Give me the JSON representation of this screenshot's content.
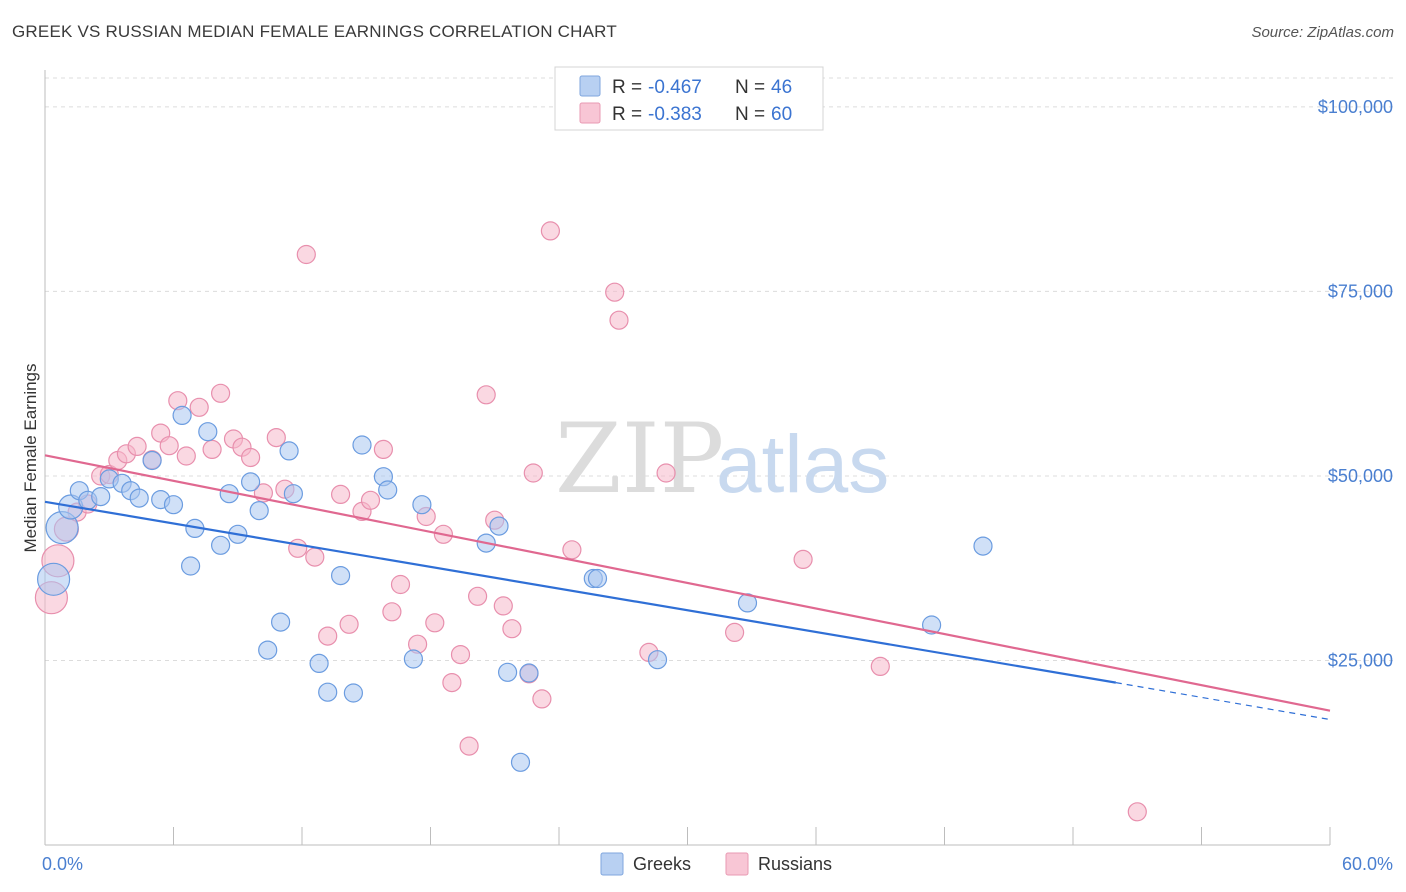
{
  "header": {
    "title": "GREEK VS RUSSIAN MEDIAN FEMALE EARNINGS CORRELATION CHART",
    "source": "Source: ZipAtlas.com"
  },
  "watermark": {
    "zip": "ZIP",
    "atlas": "atlas"
  },
  "legend": {
    "rows": [
      {
        "r_label": "R =",
        "r_value": "-0.467",
        "n_label": "N =",
        "n_value": "46"
      },
      {
        "r_label": "R =",
        "r_value": "-0.383",
        "n_label": "N =",
        "n_value": "60"
      }
    ]
  },
  "chart_data": {
    "type": "scatter",
    "title": "GREEK VS RUSSIAN MEDIAN FEMALE EARNINGS CORRELATION CHART",
    "xlabel": "",
    "ylabel": "Median Female Earnings",
    "xlim": [
      0,
      60
    ],
    "ylim": [
      0,
      105000
    ],
    "x_tick_labels": [
      "0.0%",
      "60.0%"
    ],
    "y_ticks": [
      25000,
      50000,
      75000,
      100000
    ],
    "y_tick_labels": [
      "$25,000",
      "$50,000",
      "$75,000",
      "$100,000"
    ],
    "grid": true,
    "legend_position": "top-center",
    "colors": {
      "greeks": "#2f6fd6",
      "russians": "#e06890",
      "greeks_fill": "#a9c7f0",
      "russians_fill": "#f6b8cb",
      "tick_label": "#4a7fd0"
    },
    "series": [
      {
        "name": "Greeks",
        "r": -0.467,
        "n": 46,
        "trend": {
          "x0": 0,
          "y0": 46500,
          "x1": 50,
          "y1": 22000,
          "dash_x1": 60,
          "dash_y1": 17000
        },
        "points": [
          [
            0.4,
            36000
          ],
          [
            0.8,
            43000
          ],
          [
            1.2,
            45800
          ],
          [
            1.6,
            48000
          ],
          [
            2.0,
            46700
          ],
          [
            2.6,
            47200
          ],
          [
            3.0,
            49600
          ],
          [
            3.6,
            49000
          ],
          [
            4.0,
            48000
          ],
          [
            4.4,
            47000
          ],
          [
            5.0,
            52100
          ],
          [
            5.4,
            46800
          ],
          [
            6.0,
            46100
          ],
          [
            6.4,
            58200
          ],
          [
            7.0,
            42900
          ],
          [
            6.8,
            37800
          ],
          [
            7.6,
            56000
          ],
          [
            8.2,
            40600
          ],
          [
            8.6,
            47600
          ],
          [
            9.0,
            42100
          ],
          [
            9.6,
            49200
          ],
          [
            10.0,
            45300
          ],
          [
            10.4,
            26400
          ],
          [
            11.0,
            30200
          ],
          [
            11.4,
            53400
          ],
          [
            11.6,
            47600
          ],
          [
            12.8,
            24600
          ],
          [
            13.2,
            20700
          ],
          [
            13.8,
            36500
          ],
          [
            14.4,
            20600
          ],
          [
            14.8,
            54200
          ],
          [
            15.8,
            49900
          ],
          [
            16.0,
            48100
          ],
          [
            17.2,
            25200
          ],
          [
            17.6,
            46100
          ],
          [
            20.6,
            40900
          ],
          [
            21.2,
            43200
          ],
          [
            21.6,
            23400
          ],
          [
            22.2,
            11200
          ],
          [
            22.6,
            23300
          ],
          [
            25.6,
            36100
          ],
          [
            25.8,
            36100
          ],
          [
            28.6,
            25100
          ],
          [
            32.8,
            32800
          ],
          [
            41.4,
            29800
          ],
          [
            43.8,
            40500
          ]
        ]
      },
      {
        "name": "Russians",
        "r": -0.383,
        "n": 60,
        "trend": {
          "x0": 0,
          "y0": 52800,
          "x1": 60,
          "y1": 18200
        },
        "points": [
          [
            0.3,
            33500
          ],
          [
            0.6,
            38500
          ],
          [
            1.0,
            42800
          ],
          [
            1.5,
            45100
          ],
          [
            2.0,
            46200
          ],
          [
            2.6,
            50000
          ],
          [
            3.0,
            50200
          ],
          [
            3.4,
            52100
          ],
          [
            3.8,
            53000
          ],
          [
            4.3,
            54000
          ],
          [
            5.0,
            52200
          ],
          [
            5.4,
            55800
          ],
          [
            5.8,
            54100
          ],
          [
            6.2,
            60200
          ],
          [
            6.6,
            52700
          ],
          [
            7.2,
            59300
          ],
          [
            7.8,
            53600
          ],
          [
            8.2,
            61200
          ],
          [
            8.8,
            55000
          ],
          [
            9.2,
            53900
          ],
          [
            9.6,
            52500
          ],
          [
            10.2,
            47700
          ],
          [
            10.8,
            55200
          ],
          [
            11.2,
            48200
          ],
          [
            11.8,
            40200
          ],
          [
            12.2,
            80000
          ],
          [
            12.6,
            39000
          ],
          [
            13.2,
            28300
          ],
          [
            13.8,
            47500
          ],
          [
            14.2,
            29900
          ],
          [
            14.8,
            45200
          ],
          [
            15.2,
            46700
          ],
          [
            15.8,
            53600
          ],
          [
            16.2,
            31600
          ],
          [
            16.6,
            35300
          ],
          [
            17.4,
            27200
          ],
          [
            17.8,
            44500
          ],
          [
            18.2,
            30100
          ],
          [
            18.6,
            42100
          ],
          [
            19.0,
            22000
          ],
          [
            19.4,
            25800
          ],
          [
            19.8,
            13400
          ],
          [
            20.2,
            33700
          ],
          [
            20.6,
            61000
          ],
          [
            21.0,
            44000
          ],
          [
            21.4,
            32400
          ],
          [
            21.8,
            29300
          ],
          [
            22.6,
            23200
          ],
          [
            22.8,
            50400
          ],
          [
            23.2,
            19800
          ],
          [
            23.6,
            83200
          ],
          [
            24.6,
            40000
          ],
          [
            26.6,
            74900
          ],
          [
            26.8,
            71100
          ],
          [
            28.2,
            26100
          ],
          [
            29.0,
            50400
          ],
          [
            32.2,
            28800
          ],
          [
            35.4,
            38700
          ],
          [
            39.0,
            24200
          ],
          [
            51.0,
            4500
          ]
        ]
      }
    ]
  }
}
